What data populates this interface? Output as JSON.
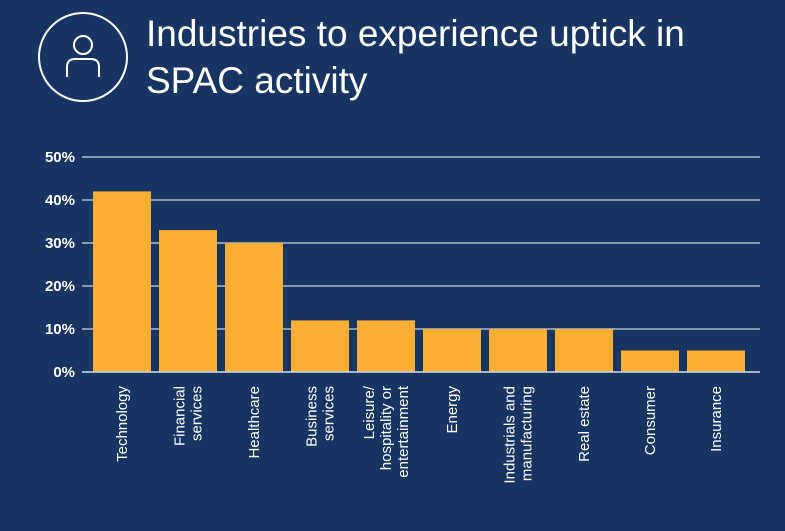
{
  "header": {
    "title": "Industries to experience uptick in SPAC activity",
    "icon": "person-icon"
  },
  "colors": {
    "background": "#173462",
    "bar": "#FBAE34",
    "text": "#FFFFFF",
    "grid": "#C9D2E3"
  },
  "chart_data": {
    "type": "bar",
    "title": "Industries to experience uptick in SPAC activity",
    "xlabel": "",
    "ylabel": "",
    "ylim": [
      0,
      50
    ],
    "yticks": [
      0,
      10,
      20,
      30,
      40,
      50
    ],
    "ytick_labels": [
      "0%",
      "10%",
      "20%",
      "30%",
      "40%",
      "50%"
    ],
    "grid": true,
    "categories": [
      [
        "Technology"
      ],
      [
        "Financial",
        "services"
      ],
      [
        "Healthcare"
      ],
      [
        "Business",
        "services"
      ],
      [
        "Leisure/",
        "hospitality or",
        "entertainment"
      ],
      [
        "Energy"
      ],
      [
        "Industrials and",
        "manufacturing"
      ],
      [
        "Real estate"
      ],
      [
        "Consumer"
      ],
      [
        "Insurance"
      ]
    ],
    "values": [
      42,
      33,
      30,
      12,
      12,
      10,
      10,
      10,
      5,
      5
    ]
  }
}
